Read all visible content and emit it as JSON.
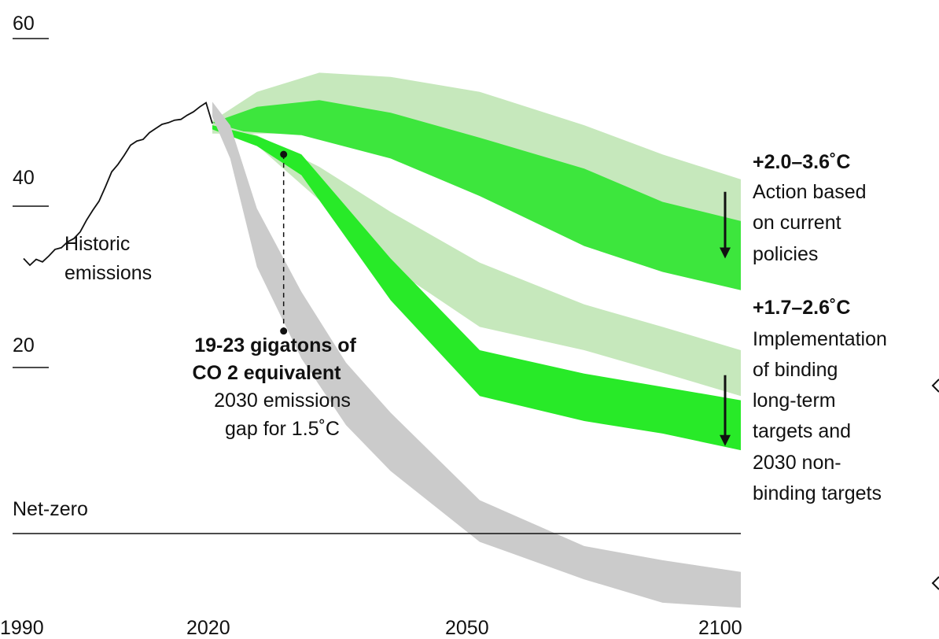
{
  "chart_data": {
    "type": "area",
    "x_ticks": [
      "1990",
      "2020",
      "2050",
      "2100"
    ],
    "y_ticks": [
      "60",
      "40",
      "20"
    ],
    "net_zero_label": "Net-zero",
    "ylim": [
      -9,
      60
    ],
    "historic": {
      "label_lines": [
        "Historic",
        "emissions"
      ],
      "points": [
        [
          1990,
          33.0
        ],
        [
          1991,
          32.2
        ],
        [
          1992,
          32.9
        ],
        [
          1993,
          32.6
        ],
        [
          1994,
          33.3
        ],
        [
          1995,
          34.1
        ],
        [
          1996,
          34.3
        ],
        [
          1997,
          35.0
        ],
        [
          1998,
          35.4
        ],
        [
          1999,
          36.2
        ],
        [
          2000,
          37.6
        ],
        [
          2001,
          38.8
        ],
        [
          2002,
          39.9
        ],
        [
          2003,
          41.6
        ],
        [
          2004,
          43.4
        ],
        [
          2005,
          44.3
        ],
        [
          2006,
          45.4
        ],
        [
          2007,
          46.6
        ],
        [
          2008,
          47.1
        ],
        [
          2009,
          47.3
        ],
        [
          2010,
          48.1
        ],
        [
          2011,
          48.6
        ],
        [
          2012,
          49.1
        ],
        [
          2013,
          49.3
        ],
        [
          2014,
          49.6
        ],
        [
          2015,
          49.7
        ],
        [
          2016,
          50.2
        ],
        [
          2017,
          50.6
        ],
        [
          2018,
          51.2
        ],
        [
          2019,
          51.7
        ],
        [
          2020,
          49.2
        ]
      ]
    },
    "bands": [
      {
        "name": "current_policies_outer",
        "color": "#c6e8bc",
        "upper": [
          [
            2020,
            49.5
          ],
          [
            2025,
            53.0
          ],
          [
            2032,
            55.3
          ],
          [
            2040,
            54.8
          ],
          [
            2050,
            53.0
          ],
          [
            2070,
            49.0
          ],
          [
            2085,
            45.5
          ],
          [
            2100,
            42.5
          ]
        ],
        "lower": [
          [
            2020,
            48.0
          ],
          [
            2030,
            48.0
          ],
          [
            2040,
            45.5
          ],
          [
            2050,
            41.0
          ],
          [
            2070,
            36.0
          ],
          [
            2085,
            33.6
          ],
          [
            2100,
            33.0
          ]
        ]
      },
      {
        "name": "current_policies_inner",
        "color": "#3de63d",
        "upper": [
          [
            2020,
            49.3
          ],
          [
            2025,
            51.2
          ],
          [
            2032,
            52.0
          ],
          [
            2040,
            50.5
          ],
          [
            2050,
            47.5
          ],
          [
            2070,
            43.8
          ],
          [
            2085,
            39.8
          ],
          [
            2100,
            37.5
          ]
        ],
        "lower": [
          [
            2020,
            48.5
          ],
          [
            2030,
            47.8
          ],
          [
            2040,
            45.0
          ],
          [
            2050,
            40.5
          ],
          [
            2070,
            34.5
          ],
          [
            2085,
            31.4
          ],
          [
            2100,
            29.2
          ]
        ]
      },
      {
        "name": "targets_outer",
        "color": "#c6e8bc",
        "upper": [
          [
            2020,
            49.3
          ],
          [
            2025,
            47.8
          ],
          [
            2032,
            44.0
          ],
          [
            2040,
            38.6
          ],
          [
            2050,
            32.5
          ],
          [
            2070,
            27.5
          ],
          [
            2085,
            24.8
          ],
          [
            2100,
            22.0
          ]
        ],
        "lower": [
          [
            2020,
            48.6
          ],
          [
            2025,
            46.6
          ],
          [
            2032,
            40.0
          ],
          [
            2040,
            32.0
          ],
          [
            2050,
            24.8
          ],
          [
            2070,
            22.0
          ],
          [
            2085,
            19.3
          ],
          [
            2100,
            16.5
          ]
        ]
      },
      {
        "name": "targets_inner",
        "color": "#28ea28",
        "upper": [
          [
            2020,
            49.0
          ],
          [
            2025,
            47.7
          ],
          [
            2030,
            45.5
          ],
          [
            2040,
            33.0
          ],
          [
            2050,
            22.0
          ],
          [
            2070,
            19.2
          ],
          [
            2085,
            17.6
          ],
          [
            2100,
            16.0
          ]
        ],
        "lower": [
          [
            2020,
            48.5
          ],
          [
            2025,
            46.5
          ],
          [
            2030,
            43.0
          ],
          [
            2040,
            28.0
          ],
          [
            2050,
            16.5
          ],
          [
            2070,
            13.5
          ],
          [
            2085,
            12.0
          ],
          [
            2100,
            10.0
          ]
        ]
      },
      {
        "name": "pathway_1_5C",
        "color": "#cbcbcb",
        "upper": [
          [
            2020,
            51.8
          ],
          [
            2022,
            49.0
          ],
          [
            2025,
            39.0
          ],
          [
            2030,
            29.0
          ],
          [
            2035,
            20.5
          ],
          [
            2040,
            14.5
          ],
          [
            2050,
            4.0
          ],
          [
            2070,
            -1.5
          ],
          [
            2085,
            -3.2
          ],
          [
            2100,
            -4.6
          ]
        ],
        "lower": [
          [
            2020,
            50.0
          ],
          [
            2022,
            45.0
          ],
          [
            2025,
            32.0
          ],
          [
            2030,
            21.0
          ],
          [
            2035,
            13.0
          ],
          [
            2040,
            7.5
          ],
          [
            2050,
            -1.0
          ],
          [
            2070,
            -5.5
          ],
          [
            2085,
            -8.3
          ],
          [
            2100,
            -8.9
          ]
        ]
      }
    ],
    "gap_marker": {
      "x": 2028,
      "top": 45.5,
      "bottom": 24.3
    },
    "gap_annotation": {
      "bold_line1": "19-23 gigatons of",
      "bold_line2": "CO 2 equivalent",
      "line3": "2030 emissions",
      "line4": "gap for 1.5˚C"
    },
    "scenarios": [
      {
        "title": "+2.0–3.6˚C",
        "lines": [
          "Action based",
          "on current",
          "policies"
        ],
        "arrow_from": 41.0,
        "arrow_to": 33.0
      },
      {
        "title": "+1.7–2.6˚C",
        "lines": [
          "Implementation",
          "of binding",
          "long-term",
          "targets and",
          "2030 non-",
          "binding targets"
        ],
        "arrow_from": 19.0,
        "arrow_to": 10.5
      }
    ]
  }
}
